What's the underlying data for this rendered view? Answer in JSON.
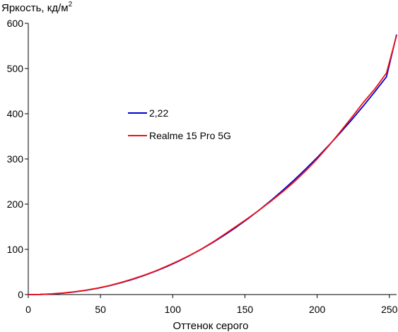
{
  "chart_data": {
    "type": "line",
    "title": "",
    "ylabel": "Яркость, кд/м",
    "ylabel_sup": "2",
    "xlabel": "Оттенок серого",
    "xlim": [
      0,
      255
    ],
    "ylim": [
      0,
      600
    ],
    "x_ticks": [
      0,
      50,
      100,
      150,
      200,
      250
    ],
    "y_ticks": [
      0,
      100,
      200,
      300,
      400,
      500,
      600
    ],
    "grid": false,
    "legend_position": "center-left",
    "series": [
      {
        "name": "2,22",
        "color": "#0000cc",
        "x": [
          0,
          8,
          16,
          24,
          32,
          40,
          48,
          56,
          64,
          72,
          80,
          88,
          96,
          104,
          112,
          120,
          128,
          136,
          144,
          152,
          160,
          168,
          176,
          184,
          192,
          200,
          208,
          216,
          224,
          232,
          240,
          248,
          255
        ],
        "y": [
          0,
          0.3,
          1.3,
          3.1,
          5.8,
          9.4,
          13.9,
          19.4,
          25.9,
          33.4,
          41.9,
          51.5,
          62.1,
          73.8,
          86.7,
          100.6,
          115.6,
          131.8,
          149.1,
          167.6,
          187.2,
          208.0,
          230.0,
          253.1,
          277.5,
          303.0,
          329.8,
          357.7,
          386.9,
          417.3,
          448.9,
          481.8,
          575
        ]
      },
      {
        "name": "Realme 15 Pro 5G",
        "color": "#ee1111",
        "x": [
          0,
          8,
          16,
          24,
          32,
          40,
          48,
          56,
          64,
          72,
          80,
          88,
          96,
          104,
          112,
          120,
          128,
          136,
          144,
          152,
          160,
          168,
          176,
          184,
          192,
          200,
          208,
          216,
          224,
          232,
          240,
          248,
          255
        ],
        "y": [
          0,
          0.3,
          1.5,
          3.4,
          6.2,
          9.8,
          14.3,
          19.8,
          26.6,
          34.2,
          42.6,
          52.0,
          63.0,
          74.6,
          87.0,
          101.0,
          116.5,
          133.5,
          151.0,
          168.5,
          187.0,
          206.5,
          227.0,
          249.0,
          273.5,
          300.0,
          329.0,
          360.0,
          392.0,
          425.0,
          455.0,
          490.0,
          573
        ]
      }
    ]
  }
}
